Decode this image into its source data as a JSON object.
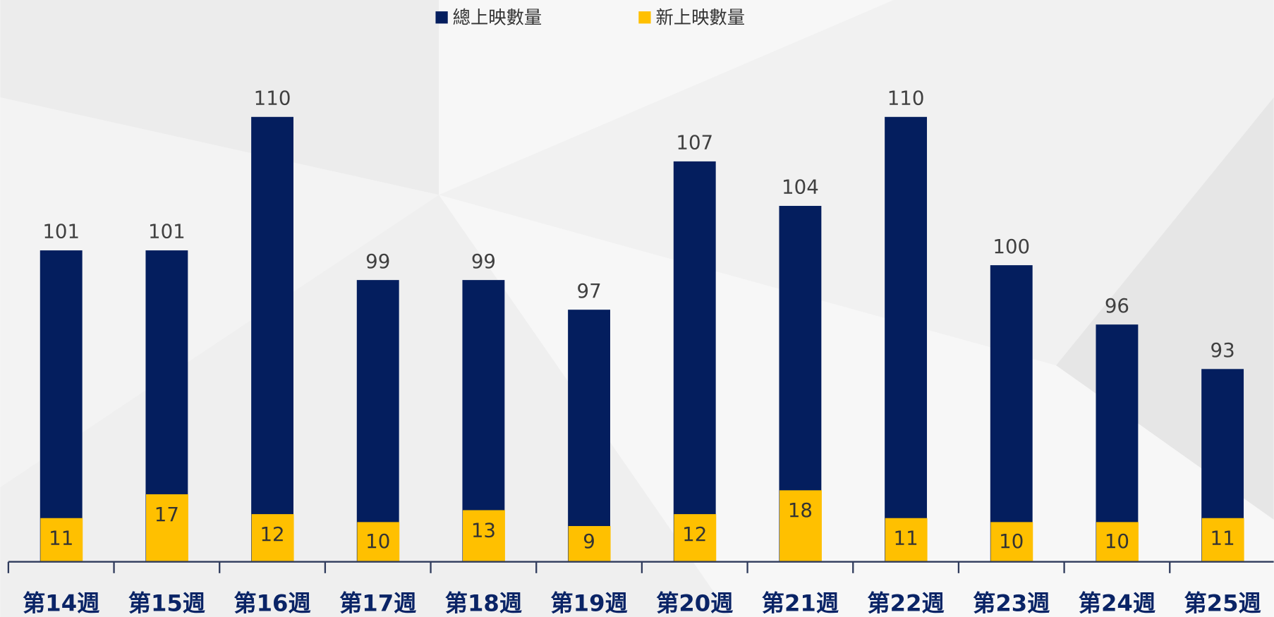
{
  "chart_data": {
    "type": "bar",
    "categories": [
      "第14週",
      "第15週",
      "第16週",
      "第17週",
      "第18週",
      "第19週",
      "第20週",
      "第21週",
      "第22週",
      "第23週",
      "第24週",
      "第25週"
    ],
    "series": [
      {
        "name": "總上映數量",
        "color": "#041e5e",
        "values": [
          101,
          101,
          110,
          99,
          99,
          97,
          107,
          104,
          110,
          100,
          96,
          93
        ]
      },
      {
        "name": "新上映數量",
        "color": "#ffc000",
        "axis": "y2",
        "values": [
          11,
          17,
          12,
          10,
          13,
          9,
          12,
          18,
          11,
          10,
          10,
          11
        ]
      }
    ],
    "ylim": [
      80,
      110
    ],
    "y2lim": [
      0,
      112
    ],
    "legend": "top"
  }
}
